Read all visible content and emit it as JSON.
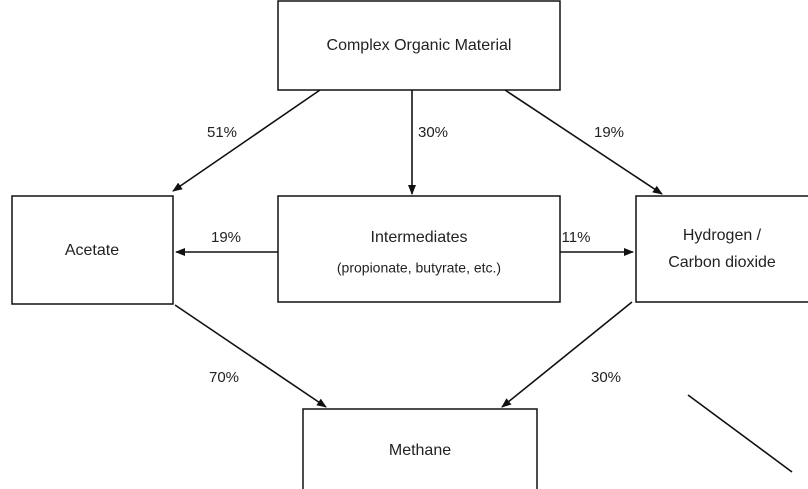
{
  "nodes": [
    {
      "lines": [
        "Complex Organic Material"
      ]
    },
    {
      "lines": [
        "Acetate"
      ]
    },
    {
      "lines": [
        "Intermediates",
        "(propionate, butyrate, etc.)"
      ]
    },
    {
      "lines": [
        "Hydrogen /",
        "Carbon dioxide"
      ]
    },
    {
      "lines": [
        "Methane"
      ]
    }
  ],
  "edges": [
    {
      "label": "51%"
    },
    {
      "label": "30%"
    },
    {
      "label": "19%"
    },
    {
      "label": "19%"
    },
    {
      "label": "11%"
    },
    {
      "label": "70%"
    },
    {
      "label": "30%"
    }
  ]
}
